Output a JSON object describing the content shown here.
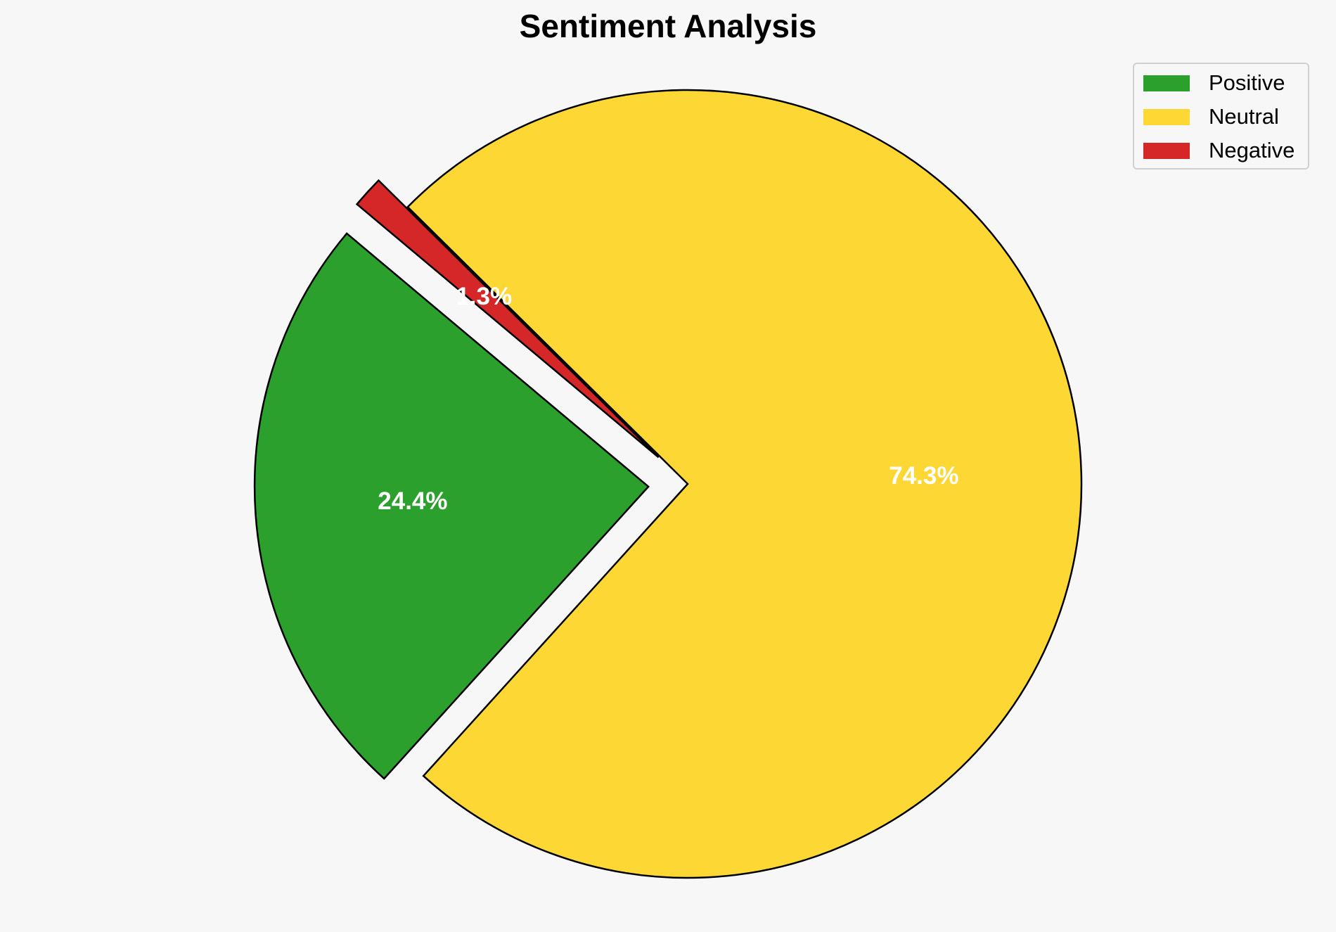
{
  "chart_data": {
    "type": "pie",
    "title": "Sentiment Analysis",
    "slices": [
      {
        "label": "Positive",
        "value": 24.4,
        "value_label": "24.4%",
        "color": "#2ca02c",
        "exploded": true
      },
      {
        "label": "Neutral",
        "value": 74.3,
        "value_label": "74.3%",
        "color": "#fdd835",
        "exploded": false
      },
      {
        "label": "Negative",
        "value": 1.3,
        "value_label": "1.3%",
        "color": "#d62728",
        "exploded": true
      }
    ],
    "start_angle_deg": 140,
    "direction": "counterclockwise",
    "edge_color": "#000000",
    "label_color": "#ffffff",
    "legend_position": "upper-right"
  }
}
